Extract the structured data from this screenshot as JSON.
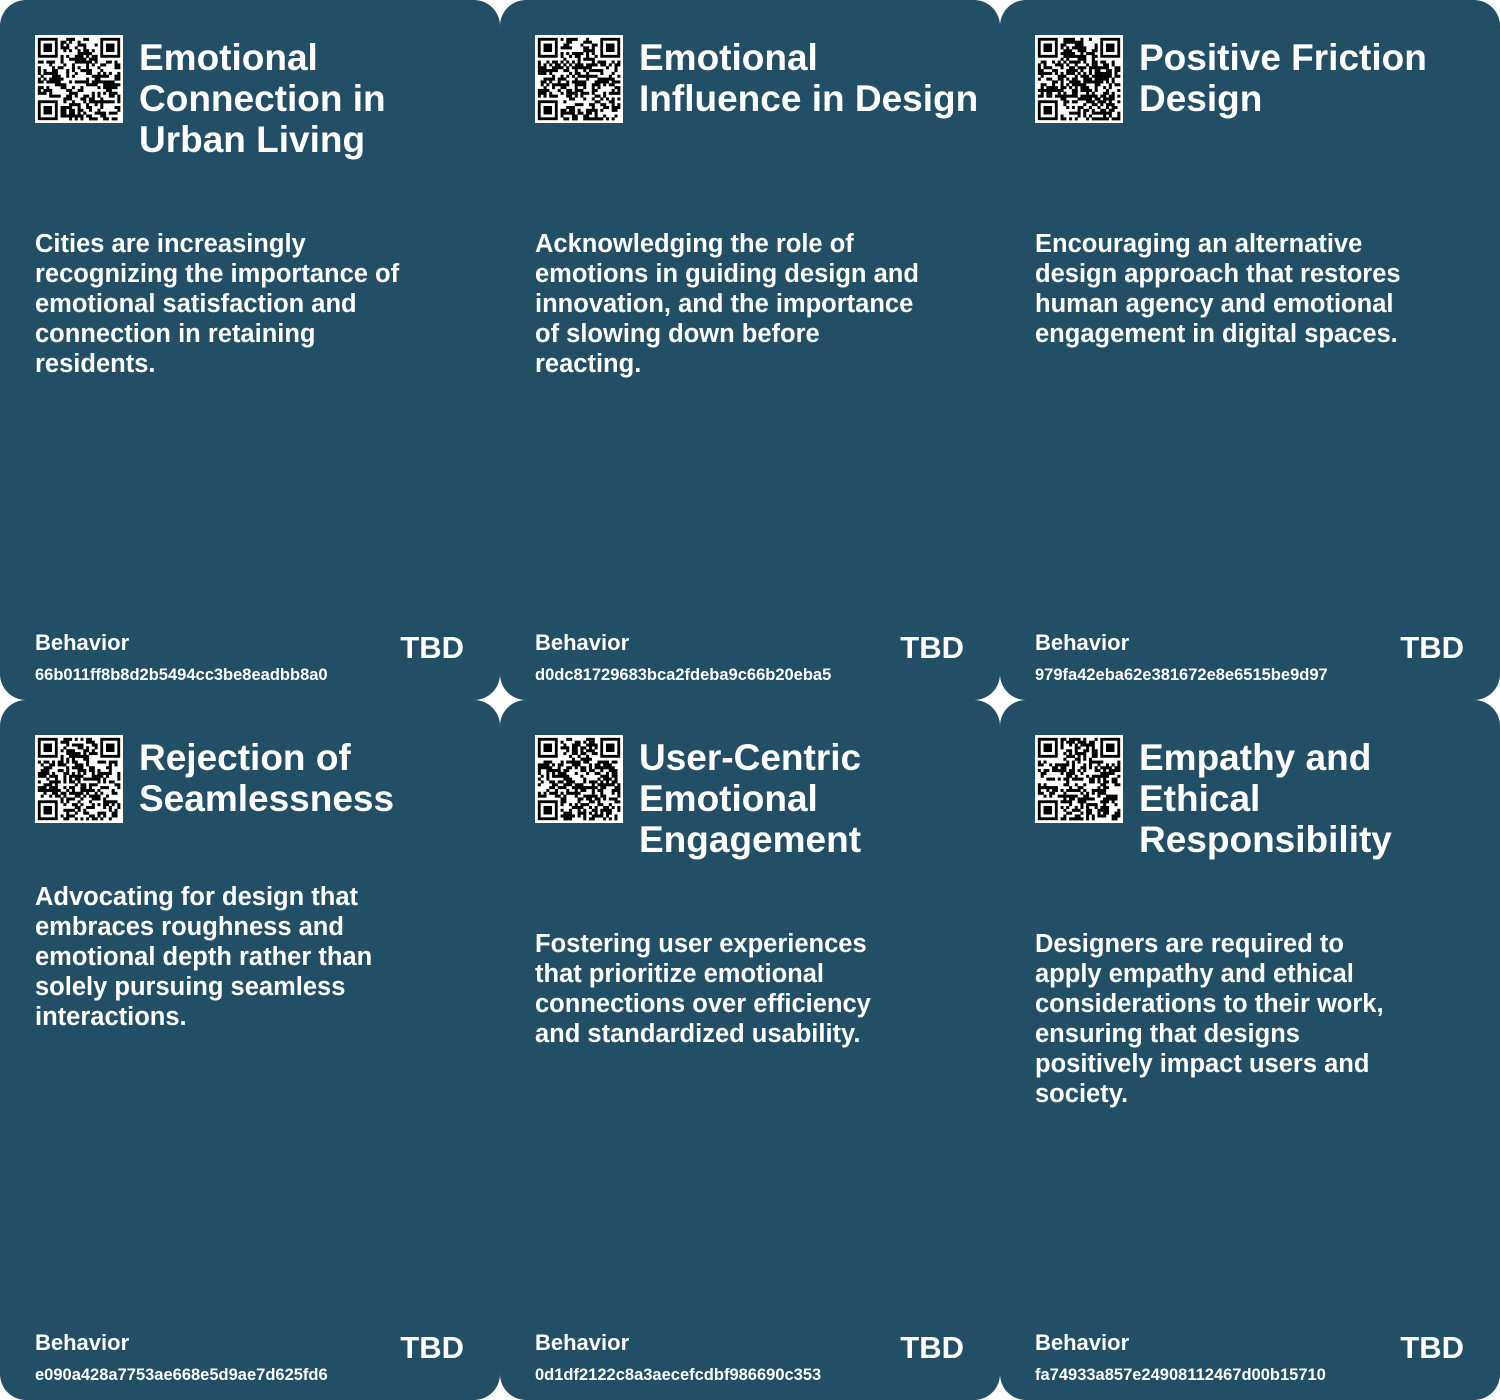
{
  "colors": {
    "card_background": "#234f66",
    "text": "#ffffff"
  },
  "cards": [
    {
      "title": "Emotional Connection in Urban Living",
      "description": "Cities are increasingly recognizing the importance of emotional satisfaction and connection in retaining residents.",
      "category": "Behavior",
      "status": "TBD",
      "id": "66b011ff8b8d2b5494cc3be8eadbb8a0",
      "icon": "qr-code"
    },
    {
      "title": "Emotional Influence in Design",
      "description": "Acknowledging the role of emotions in guiding design and innovation, and the importance of slowing down before reacting.",
      "category": "Behavior",
      "status": "TBD",
      "id": "d0dc81729683bca2fdeba9c66b20eba5",
      "icon": "qr-code"
    },
    {
      "title": "Positive Friction Design",
      "description": "Encouraging an alternative design approach that restores human agency and emotional engagement in digital spaces.",
      "category": "Behavior",
      "status": "TBD",
      "id": "979fa42eba62e381672e8e6515be9d97",
      "icon": "qr-code"
    },
    {
      "title": "Rejection of Seamlessness",
      "description": "Advocating for design that embraces roughness and emotional depth rather than solely pursuing seamless interactions.",
      "category": "Behavior",
      "status": "TBD",
      "id": "e090a428a7753ae668e5d9ae7d625fd6",
      "icon": "qr-code"
    },
    {
      "title": "User-Centric Emotional Engagement",
      "description": "Fostering user experiences that prioritize emotional connections over efficiency and standardized usability.",
      "category": "Behavior",
      "status": "TBD",
      "id": "0d1df2122c8a3aecefcdbf986690c353",
      "icon": "qr-code"
    },
    {
      "title": "Empathy and Ethical Responsibility",
      "description": "Designers are required to apply empathy and ethical considerations to their work, ensuring that designs positively impact users and society.",
      "category": "Behavior",
      "status": "TBD",
      "id": "fa74933a857e24908112467d00b15710",
      "icon": "qr-code"
    }
  ]
}
